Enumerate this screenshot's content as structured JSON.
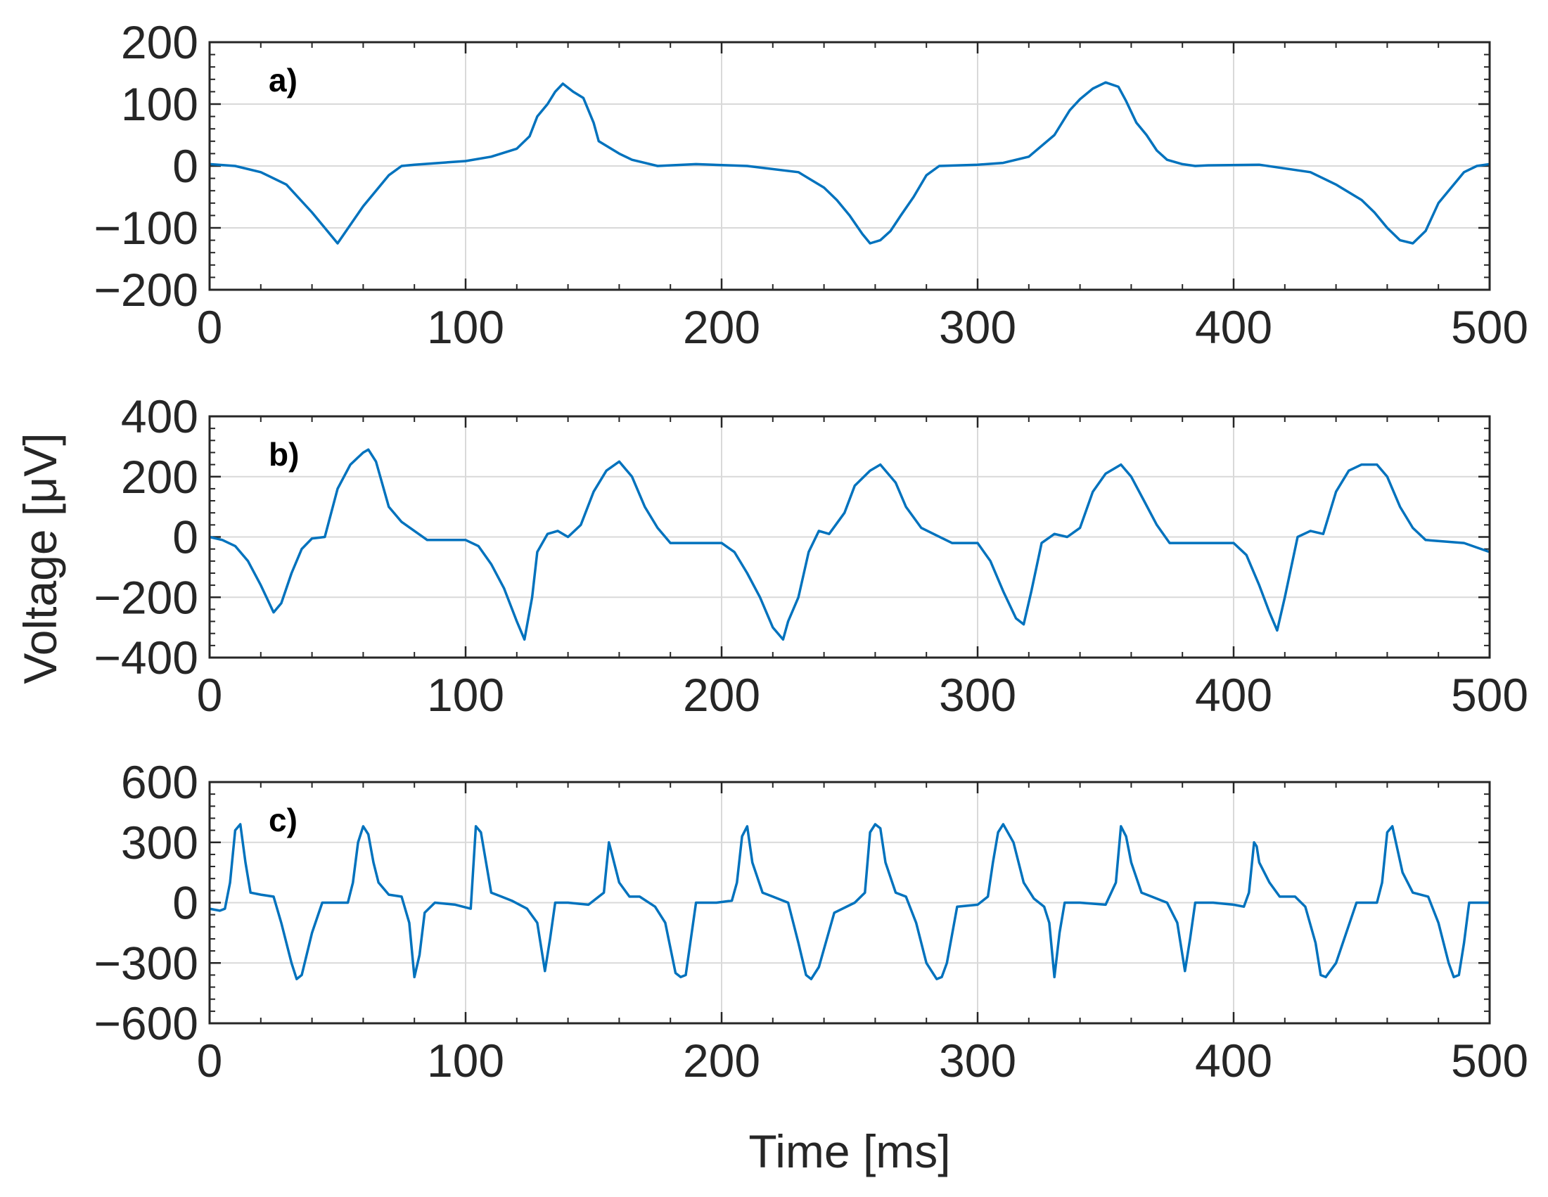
{
  "chart_data": {
    "type": "line",
    "colors": {
      "line": "#0072BD",
      "grid": "#d9d9d9",
      "axis": "#262626"
    },
    "shared_ylabel": "Voltage [μV]",
    "xlabel": "Time [ms]",
    "panels": [
      {
        "id": "a",
        "label": "a)",
        "xlim": [
          0,
          500
        ],
        "ylim": [
          -200,
          200
        ],
        "xticks": [
          0,
          100,
          200,
          300,
          400,
          500
        ],
        "yticks": [
          -200,
          -100,
          0,
          100,
          200
        ],
        "xtick_labels": [
          "0",
          "100",
          "200",
          "300",
          "400",
          "500"
        ],
        "ytick_labels": [
          "−200",
          "−100",
          "0",
          "100",
          "200"
        ],
        "x": [
          0,
          10,
          20,
          30,
          40,
          50,
          60,
          65,
          70,
          75,
          80,
          100,
          110,
          120,
          125,
          128,
          132,
          135,
          138,
          142,
          146,
          150,
          152,
          160,
          165,
          170,
          175,
          190,
          210,
          230,
          240,
          245,
          250,
          255,
          258,
          262,
          266,
          270,
          275,
          280,
          285,
          300,
          310,
          320,
          330,
          336,
          340,
          345,
          350,
          355,
          358,
          362,
          366,
          370,
          374,
          380,
          385,
          390,
          410,
          430,
          440,
          450,
          455,
          460,
          465,
          470,
          475,
          480,
          485,
          490,
          495,
          500
        ],
        "values": [
          3,
          0,
          -10,
          -30,
          -75,
          -125,
          -65,
          -40,
          -15,
          0,
          2,
          8,
          15,
          28,
          48,
          80,
          100,
          120,
          133,
          120,
          110,
          70,
          40,
          20,
          10,
          5,
          0,
          3,
          0,
          -10,
          -35,
          -55,
          -80,
          -110,
          -125,
          -120,
          -105,
          -80,
          -50,
          -15,
          0,
          2,
          5,
          15,
          50,
          90,
          108,
          125,
          135,
          128,
          105,
          70,
          50,
          25,
          10,
          3,
          0,
          1,
          2,
          -10,
          -30,
          -55,
          -75,
          -100,
          -120,
          -125,
          -105,
          -60,
          -35,
          -10,
          0,
          3
        ]
      },
      {
        "id": "b",
        "label": "b)",
        "xlim": [
          0,
          500
        ],
        "ylim": [
          -400,
          400
        ],
        "xticks": [
          0,
          100,
          200,
          300,
          400,
          500
        ],
        "yticks": [
          -400,
          -200,
          0,
          200,
          400
        ],
        "xtick_labels": [
          "0",
          "100",
          "200",
          "300",
          "400",
          "500"
        ],
        "ytick_labels": [
          "−400",
          "−200",
          "0",
          "200",
          "400"
        ],
        "x": [
          0,
          5,
          10,
          15,
          20,
          25,
          28,
          32,
          36,
          40,
          45,
          50,
          55,
          60,
          62,
          65,
          70,
          75,
          80,
          85,
          100,
          105,
          110,
          115,
          120,
          123,
          126,
          128,
          132,
          136,
          140,
          145,
          150,
          155,
          160,
          165,
          170,
          175,
          180,
          190,
          200,
          205,
          210,
          215,
          220,
          224,
          226,
          230,
          234,
          238,
          242,
          248,
          252,
          258,
          262,
          268,
          272,
          278,
          290,
          300,
          305,
          310,
          315,
          318,
          321,
          325,
          330,
          335,
          340,
          345,
          350,
          356,
          360,
          365,
          370,
          375,
          390,
          400,
          405,
          410,
          414,
          417,
          420,
          425,
          430,
          435,
          440,
          445,
          450,
          456,
          460,
          465,
          470,
          475,
          490,
          500
        ],
        "values": [
          0,
          -10,
          -30,
          -80,
          -160,
          -250,
          -220,
          -120,
          -40,
          -5,
          0,
          160,
          240,
          280,
          290,
          250,
          100,
          50,
          20,
          -10,
          -10,
          -30,
          -90,
          -170,
          -280,
          -340,
          -200,
          -50,
          10,
          20,
          0,
          40,
          150,
          220,
          250,
          200,
          100,
          30,
          -20,
          -20,
          -20,
          -50,
          -120,
          -200,
          -300,
          -340,
          -280,
          -200,
          -50,
          20,
          10,
          80,
          170,
          220,
          240,
          180,
          100,
          30,
          -20,
          -20,
          -80,
          -180,
          -270,
          -290,
          -180,
          -20,
          10,
          0,
          30,
          150,
          210,
          240,
          200,
          120,
          40,
          -20,
          -20,
          -20,
          -60,
          -160,
          -250,
          -310,
          -200,
          0,
          20,
          10,
          150,
          220,
          240,
          240,
          200,
          100,
          30,
          -10,
          -20,
          -50
        ]
      },
      {
        "id": "c",
        "label": "c)",
        "xlim": [
          0,
          500
        ],
        "ylim": [
          -600,
          600
        ],
        "xticks": [
          0,
          100,
          200,
          300,
          400,
          500
        ],
        "yticks": [
          -600,
          -300,
          0,
          300,
          600
        ],
        "xtick_labels": [
          "0",
          "100",
          "200",
          "300",
          "400",
          "500"
        ],
        "ytick_labels": [
          "−600",
          "−300",
          "0",
          "300",
          "600"
        ],
        "x": [
          0,
          4,
          6,
          8,
          10,
          12,
          14,
          16,
          20,
          25,
          28,
          32,
          34,
          36,
          40,
          44,
          50,
          54,
          56,
          58,
          60,
          62,
          64,
          66,
          70,
          75,
          78,
          80,
          82,
          84,
          88,
          96,
          102,
          104,
          106,
          108,
          110,
          114,
          118,
          124,
          128,
          131,
          133,
          135,
          140,
          148,
          154,
          156,
          157,
          158,
          160,
          164,
          168,
          174,
          178,
          182,
          184,
          186,
          190,
          198,
          204,
          206,
          208,
          210,
          212,
          216,
          220,
          226,
          230,
          233,
          235,
          238,
          244,
          252,
          256,
          258,
          260,
          262,
          264,
          268,
          272,
          276,
          280,
          284,
          286,
          288,
          292,
          300,
          304,
          306,
          308,
          310,
          314,
          318,
          322,
          326,
          328,
          330,
          332,
          334,
          340,
          350,
          354,
          356,
          358,
          360,
          364,
          368,
          374,
          378,
          381,
          383,
          385,
          392,
          400,
          404,
          406,
          408,
          409,
          410,
          414,
          418,
          424,
          428,
          432,
          434,
          436,
          440,
          448,
          454,
          456,
          458,
          460,
          462,
          466,
          470,
          476,
          480,
          484,
          486,
          488,
          490,
          492,
          500
        ],
        "values": [
          -30,
          -40,
          -30,
          100,
          360,
          390,
          200,
          50,
          40,
          30,
          -100,
          -300,
          -380,
          -360,
          -150,
          0,
          0,
          0,
          100,
          300,
          380,
          340,
          200,
          100,
          40,
          30,
          -100,
          -370,
          -260,
          -50,
          0,
          -10,
          -30,
          380,
          350,
          200,
          50,
          30,
          10,
          -30,
          -100,
          -340,
          -180,
          0,
          0,
          -10,
          50,
          300,
          250,
          200,
          100,
          30,
          30,
          -20,
          -100,
          -350,
          -370,
          -360,
          0,
          0,
          10,
          100,
          330,
          380,
          200,
          50,
          30,
          0,
          -200,
          -360,
          -380,
          -320,
          -50,
          0,
          50,
          350,
          390,
          370,
          200,
          50,
          30,
          -100,
          -300,
          -380,
          -370,
          -300,
          -20,
          -10,
          30,
          200,
          350,
          390,
          300,
          100,
          20,
          -20,
          -100,
          -370,
          -150,
          0,
          0,
          -10,
          100,
          380,
          330,
          200,
          50,
          30,
          0,
          -100,
          -340,
          -180,
          0,
          0,
          -10,
          -20,
          50,
          300,
          280,
          200,
          100,
          30,
          30,
          -20,
          -200,
          -360,
          -370,
          -300,
          0,
          0,
          0,
          100,
          350,
          380,
          150,
          50,
          30,
          -100,
          -300,
          -370,
          -360,
          -200,
          0,
          0
        ]
      }
    ]
  }
}
